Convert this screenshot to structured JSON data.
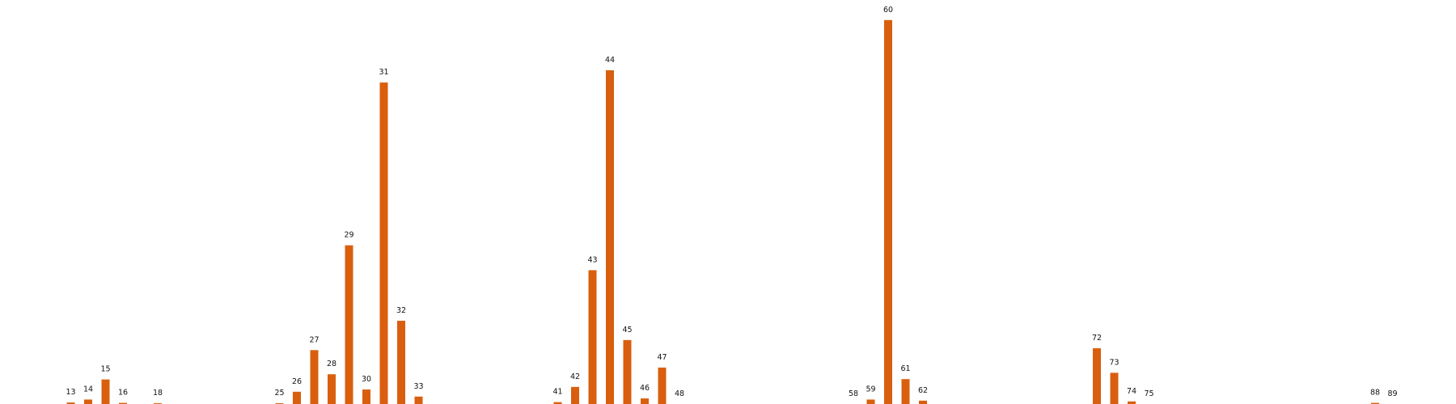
{
  "chart_data": {
    "type": "bar",
    "title": "",
    "xlabel": "",
    "ylabel": "",
    "bar_color": "#d95f0e",
    "ylim": [
      0,
      100
    ],
    "grid": false,
    "legend": "none",
    "categories": [
      "13",
      "14",
      "15",
      "16",
      "18",
      "25",
      "26",
      "27",
      "28",
      "29",
      "30",
      "31",
      "32",
      "33",
      "41",
      "42",
      "43",
      "44",
      "45",
      "46",
      "47",
      "48",
      "58",
      "59",
      "60",
      "61",
      "62",
      "72",
      "73",
      "74",
      "75",
      "88",
      "89"
    ],
    "values": [
      0.4,
      1.2,
      6.6,
      0.3,
      0.2,
      0.2,
      3.3,
      14.5,
      8.0,
      42.7,
      3.9,
      86.5,
      22.4,
      2.0,
      0.5,
      4.6,
      36.0,
      89.8,
      17.2,
      1.5,
      9.8,
      0,
      0,
      1.2,
      103.3,
      6.7,
      0.9,
      15.0,
      8.4,
      0.7,
      0,
      0.3,
      0
    ]
  }
}
